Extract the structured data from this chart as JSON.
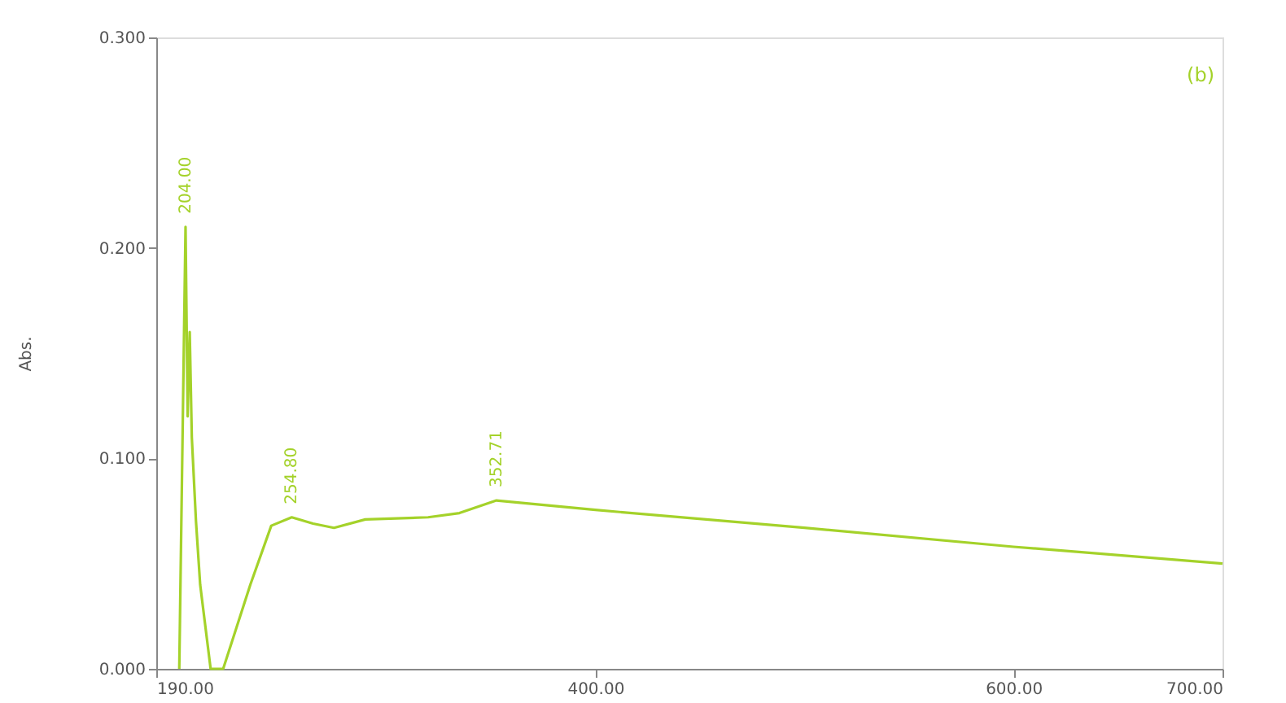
{
  "chart_data": {
    "type": "line",
    "ylabel": "Abs.",
    "x": [
      201,
      204,
      205,
      206,
      207,
      209,
      211,
      216,
      222,
      235,
      245,
      254.8,
      265,
      275,
      290,
      320,
      335,
      352.71,
      400,
      500,
      600,
      700
    ],
    "series": [
      {
        "color": "#a4d22a",
        "values": [
          0,
          0.21,
          0.12,
          0.16,
          0.11,
          0.07,
          0.04,
          0,
          0,
          0.04,
          0.068,
          0.072,
          0.069,
          0.067,
          0.071,
          0.072,
          0.074,
          0.08,
          0.0755,
          0.067,
          0.058,
          0.05
        ]
      }
    ],
    "xlim": [
      190,
      700
    ],
    "ylim": [
      0,
      0.3
    ],
    "xticks": [
      {
        "value": 190,
        "label": "190.00"
      },
      {
        "value": 400,
        "label": "400.00"
      },
      {
        "value": 600,
        "label": "600.00"
      },
      {
        "value": 700,
        "label": "700.00"
      }
    ],
    "yticks": [
      {
        "value": 0,
        "label": "0.000"
      },
      {
        "value": 0.1,
        "label": "0.100"
      },
      {
        "value": 0.2,
        "label": "0.200"
      },
      {
        "value": 0.3,
        "label": "0.300"
      }
    ],
    "annotations": [
      {
        "text": "204.00",
        "x": 204,
        "y": 0.21
      },
      {
        "text": "254.80",
        "x": 254.8,
        "y": 0.072
      },
      {
        "text": "352.71",
        "x": 352.71,
        "y": 0.08
      },
      "(b)"
    ],
    "grid": false,
    "legend": false,
    "marker": "none",
    "line_style": "solid"
  }
}
